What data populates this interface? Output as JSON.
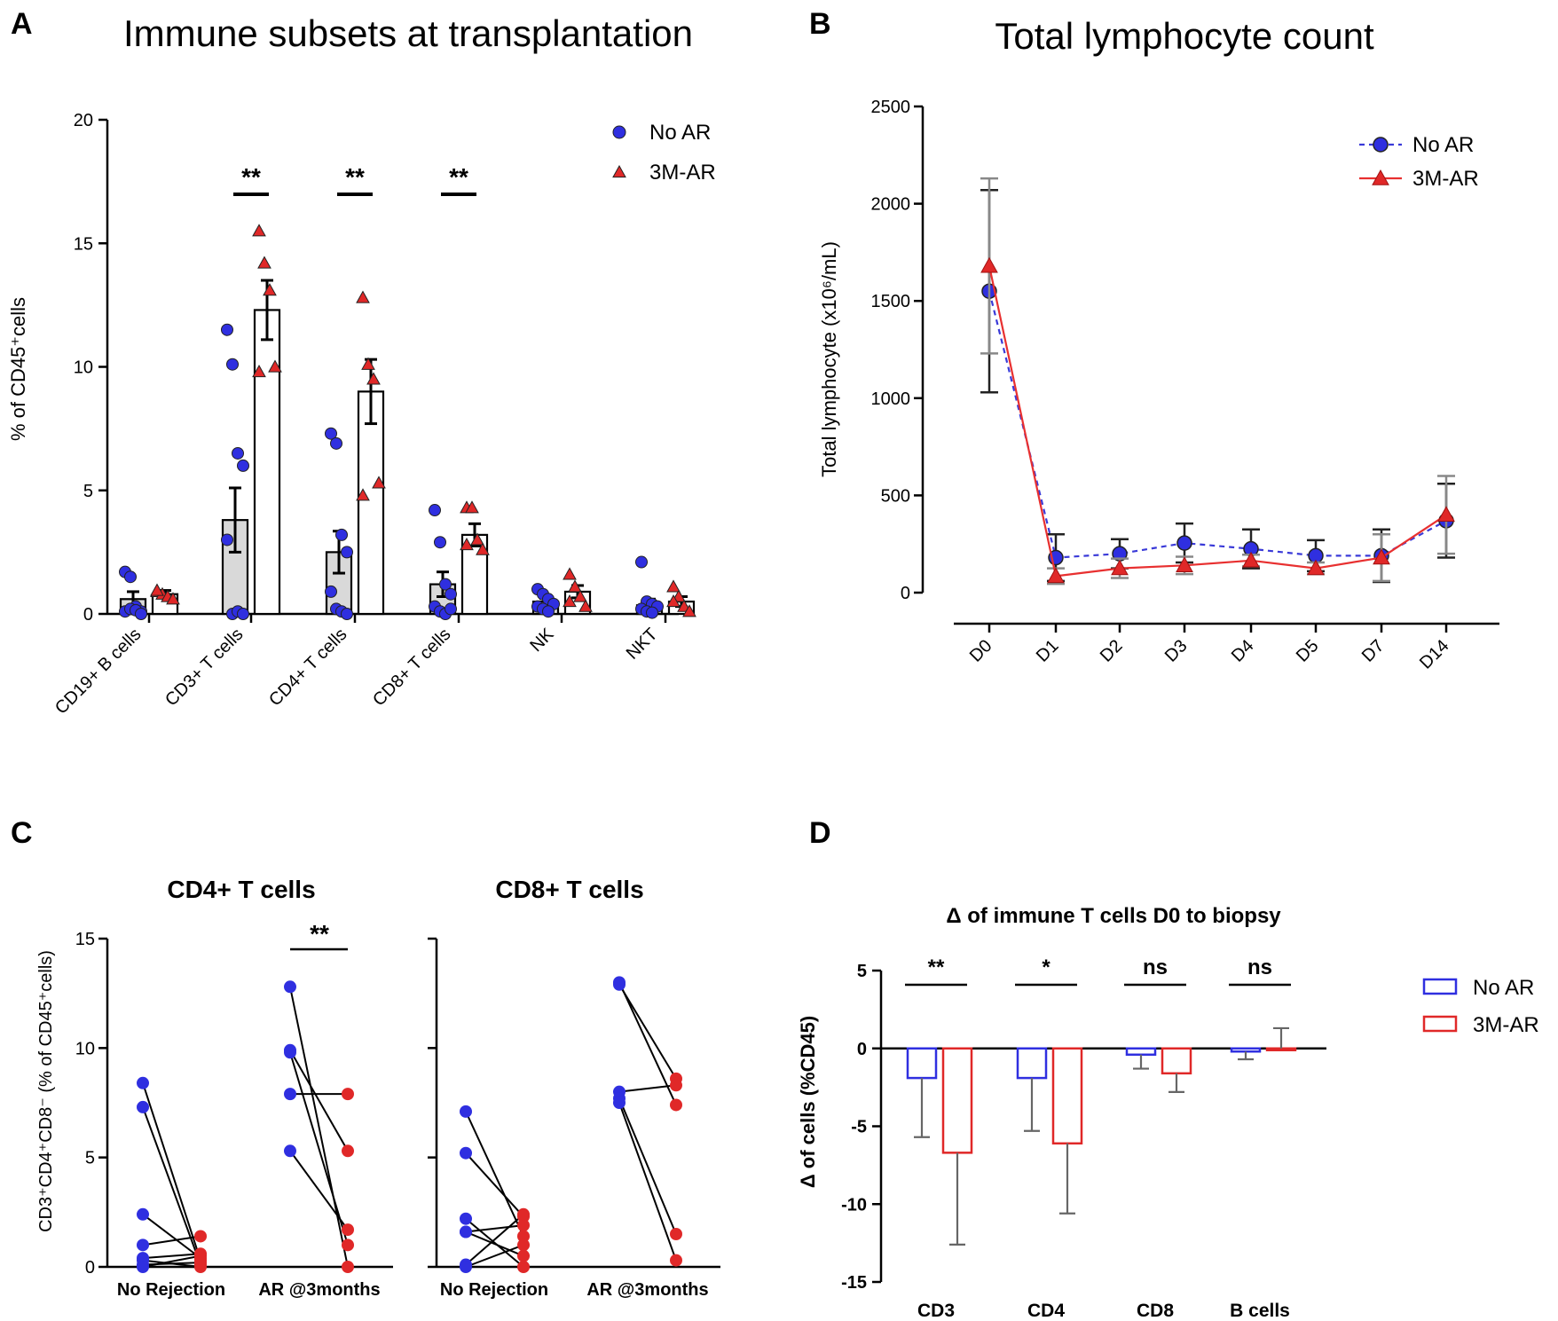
{
  "colors": {
    "no_ar": "#2f2fe0",
    "ar": "#e02828",
    "no_ar_line": "#3a3ad8",
    "ar_line": "#e83030",
    "bar_fill_no_ar": "#d9d9d9",
    "error": "#4d4d4d"
  },
  "chart_data": [
    {
      "panel": "A",
      "type": "bar",
      "title": "Immune subsets at transplantation",
      "xlabel": "",
      "ylabel": "% of CD45⁺cells",
      "ylim": [
        0,
        20
      ],
      "yticks": [
        0,
        5,
        10,
        15,
        20
      ],
      "categories": [
        "CD19+ B cells",
        "CD3+ T cells",
        "CD4+ T cells",
        "CD8+ T cells",
        "NK",
        "NKT"
      ],
      "legend": [
        "No AR",
        "3M-AR"
      ],
      "significance": [
        {
          "category": "CD3+ T cells",
          "label": "**"
        },
        {
          "category": "CD4+ T cells",
          "label": "**"
        },
        {
          "category": "CD8+ T cells",
          "label": "**"
        }
      ],
      "series": [
        {
          "name": "No AR",
          "marker": "circle",
          "values": [
            0.6,
            3.8,
            2.5,
            1.2,
            0.5,
            0.35
          ],
          "sem": [
            0.3,
            1.3,
            0.85,
            0.5,
            0.12,
            0.25
          ],
          "points": [
            [
              1.7,
              1.5,
              0.3,
              0.1,
              0.1,
              0.2,
              0.15,
              0.0
            ],
            [
              11.5,
              10.1,
              6.5,
              6.0,
              3.0,
              0.0,
              0.1,
              0.0
            ],
            [
              7.3,
              6.9,
              3.2,
              2.5,
              0.9,
              0.2,
              0.1,
              0.0
            ],
            [
              4.2,
              2.9,
              1.2,
              0.8,
              0.3,
              0.1,
              0.0,
              0.2
            ],
            [
              1.0,
              0.8,
              0.6,
              0.4,
              0.3,
              0.2,
              0.1
            ],
            [
              2.1,
              0.5,
              0.4,
              0.3,
              0.2,
              0.1,
              0.05
            ]
          ]
        },
        {
          "name": "3M-AR",
          "marker": "triangle",
          "values": [
            0.8,
            12.3,
            9.0,
            3.2,
            0.9,
            0.5
          ],
          "sem": [
            0.15,
            1.2,
            1.3,
            0.45,
            0.25,
            0.2
          ],
          "points": [
            [
              0.9,
              0.8,
              0.7,
              0.6,
              0.95
            ],
            [
              15.5,
              14.2,
              13.1,
              10.0,
              9.8
            ],
            [
              12.8,
              10.1,
              9.5,
              5.3,
              4.8
            ],
            [
              4.3,
              4.3,
              3.0,
              2.6,
              2.8
            ],
            [
              1.6,
              1.1,
              0.7,
              0.3,
              0.5
            ],
            [
              1.1,
              0.7,
              0.3,
              0.1,
              0.5
            ]
          ]
        }
      ]
    },
    {
      "panel": "B",
      "type": "line",
      "title": "Total lymphocyte count",
      "xlabel": "",
      "ylabel": "Total lymphocyte (x10⁶/mL)",
      "ylim": [
        0,
        2500
      ],
      "yticks": [
        0,
        500,
        1000,
        1500,
        2000,
        2500
      ],
      "categories": [
        "D0",
        "D1",
        "D2",
        "D3",
        "D4",
        "D5",
        "D7",
        "D14"
      ],
      "legend": [
        "No AR",
        "3M-AR"
      ],
      "series": [
        {
          "name": "No AR",
          "style": "dashed",
          "marker": "circle",
          "values": [
            1550,
            180,
            200,
            255,
            225,
            190,
            190,
            370
          ],
          "err": [
            520,
            120,
            75,
            100,
            100,
            80,
            135,
            190
          ]
        },
        {
          "name": "3M-AR",
          "style": "solid",
          "marker": "triangle",
          "values": [
            1680,
            85,
            125,
            140,
            165,
            125,
            180,
            400
          ],
          "err": [
            450,
            40,
            50,
            45,
            30,
            30,
            120,
            200
          ]
        }
      ]
    },
    {
      "panel": "C",
      "type": "scatter",
      "subtitles": [
        "CD4+  T cells",
        "CD8+ T cells"
      ],
      "ylabel": "CD3⁺CD4⁺CD8⁻ (% of CD45⁺cells)",
      "ylim": [
        0,
        15
      ],
      "yticks": [
        0,
        5,
        10,
        15
      ],
      "xticklabels": [
        "No Rejection",
        "AR @3months"
      ],
      "significance": [
        {
          "subplot": "CD4+  T cells",
          "group": "AR @3months",
          "label": "**"
        }
      ],
      "subplots": [
        {
          "name": "CD4+  T cells",
          "no_rejection_pairs": [
            [
              8.4,
              0.3
            ],
            [
              7.3,
              0.1
            ],
            [
              2.4,
              0.4
            ],
            [
              1.0,
              1.4
            ],
            [
              0.4,
              0.6
            ],
            [
              0.3,
              0.0
            ],
            [
              0.1,
              0.2
            ],
            [
              0.0,
              0.5
            ]
          ],
          "ar_pairs": [
            [
              12.8,
              0.0
            ],
            [
              9.9,
              5.3
            ],
            [
              9.8,
              1.0
            ],
            [
              7.9,
              7.9
            ],
            [
              5.3,
              1.7
            ]
          ]
        },
        {
          "name": "CD8+ T cells",
          "no_rejection_pairs": [
            [
              7.1,
              1.4
            ],
            [
              5.2,
              2.3
            ],
            [
              2.2,
              0.0
            ],
            [
              1.6,
              1.9
            ],
            [
              1.6,
              0.5
            ],
            [
              0.1,
              2.4
            ],
            [
              0.0,
              1.0
            ]
          ],
          "ar_pairs": [
            [
              13.0,
              7.4
            ],
            [
              12.9,
              8.6
            ],
            [
              8.0,
              8.3
            ],
            [
              7.7,
              1.5
            ],
            [
              7.5,
              0.3
            ]
          ]
        }
      ]
    },
    {
      "panel": "D",
      "type": "bar",
      "title": "Δ of immune T cells D0 to biopsy",
      "xlabel": "",
      "ylabel": "Δ of cells (%CD45)",
      "ylim": [
        -15,
        5
      ],
      "yticks": [
        5,
        0,
        -5,
        -10,
        -15
      ],
      "categories": [
        "CD3",
        "CD4",
        "CD8",
        "B cells"
      ],
      "legend": [
        "No AR",
        "3M-AR"
      ],
      "significance": [
        "**",
        "*",
        "ns",
        "ns"
      ],
      "series": [
        {
          "name": "No AR",
          "values": [
            -1.9,
            -1.9,
            -0.4,
            -0.2
          ],
          "err": [
            3.8,
            3.4,
            0.9,
            0.5
          ]
        },
        {
          "name": "3M-AR",
          "values": [
            -6.7,
            -6.1,
            -1.6,
            0.0
          ],
          "err": [
            5.9,
            4.5,
            1.2,
            1.3
          ]
        }
      ]
    }
  ],
  "panel_labels": {
    "a": "A",
    "b": "B",
    "c": "C",
    "d": "D"
  },
  "titles": {
    "a": "Immune subsets at transplantation",
    "b": "Total lymphocyte count",
    "c_left": "CD4+  T cells",
    "c_right": "CD8+ T cells",
    "d": "Δ of immune T cells D0 to biopsy"
  },
  "axis_labels": {
    "a_y": "% of CD45⁺cells",
    "b_y": "Total lymphocyte (x10⁶/mL)",
    "c_y": "CD3⁺CD4⁺CD8⁻ (% of CD45⁺cells)",
    "d_y": "Δ of cells (%CD45)"
  },
  "legend": {
    "no_ar": "No AR",
    "ar": "3M-AR"
  }
}
